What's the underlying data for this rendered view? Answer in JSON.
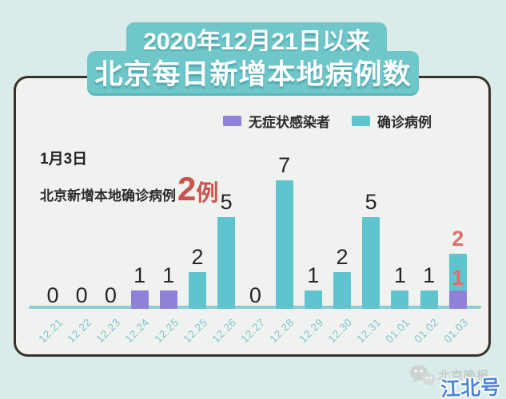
{
  "page": {
    "background": "#d9ecea",
    "card_background": "#f0f2ef",
    "card_border": "#38302c"
  },
  "title": {
    "line1": "2020年12月21日以来",
    "line2": "北京每日新增本地病例数",
    "banner_color": "#6fc7ca",
    "text_color": "#ffffff"
  },
  "legend": {
    "items": [
      {
        "label": "无症状感染者",
        "color": "#8d82d8"
      },
      {
        "label": "确诊病例",
        "color": "#5ec4ce"
      }
    ]
  },
  "annotation": {
    "date": "1月3日",
    "text": "北京新增本地确诊病例",
    "value": "2",
    "unit": "例",
    "value_color": "#c9534e"
  },
  "watermark": {
    "publisher": "北京晚报",
    "account": "江北号",
    "account_color": "#4c86d8",
    "publisher_color": "#c3cac8"
  },
  "chart_data": {
    "type": "bar",
    "stacked": true,
    "title": "2020年12月21日以来 北京每日新增本地病例数",
    "xlabel": "",
    "ylabel": "",
    "categories": [
      "12.21",
      "12.22",
      "12.23",
      "12.24",
      "12.25",
      "12.25",
      "12.26",
      "12.27",
      "12.28",
      "12.29",
      "12.30",
      "12.31",
      "01.01",
      "01.02",
      "01.03"
    ],
    "series": [
      {
        "name": "无症状感染者",
        "color": "#8d82d8",
        "values": [
          0,
          0,
          0,
          1,
          1,
          0,
          0,
          0,
          0,
          0,
          0,
          0,
          0,
          0,
          1
        ]
      },
      {
        "name": "确诊病例",
        "color": "#5ec4ce",
        "values": [
          0,
          0,
          0,
          0,
          0,
          2,
          5,
          0,
          7,
          1,
          2,
          5,
          1,
          1,
          2
        ]
      }
    ],
    "value_labels": [
      "0",
      "0",
      "0",
      "1",
      "1",
      "2",
      "5",
      "0",
      "7",
      "1",
      "2",
      "5",
      "1",
      "1",
      [
        "2",
        "1"
      ]
    ],
    "highlight_index": 14,
    "highlight_label_color": "#dd6f6b",
    "value_label_color": "#252525",
    "axis_line_color": "#8bced5",
    "tick_label_color": "#7ec5cd",
    "x_tick_rotation": -45,
    "ylim": [
      0,
      8
    ],
    "grid": false,
    "legend_position": "top-center"
  }
}
